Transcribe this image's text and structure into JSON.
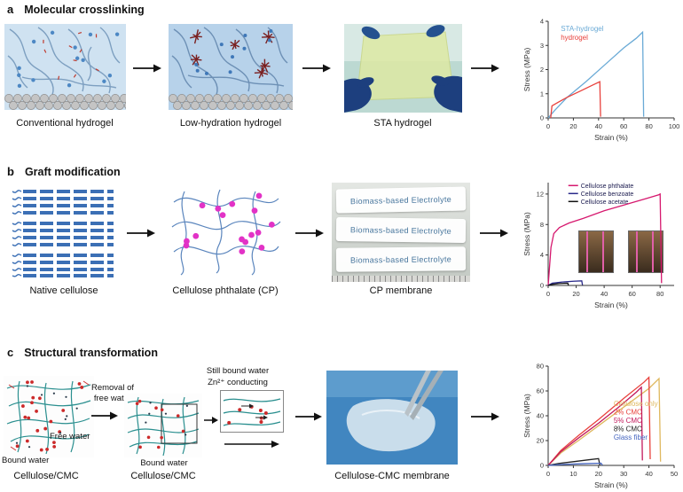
{
  "figure": {
    "panels": [
      {
        "label": "a",
        "title": "Molecular crosslinking",
        "captions": [
          "Conventional hydrogel",
          "Low-hydration hydrogel",
          "STA hydrogel"
        ]
      },
      {
        "label": "b",
        "title": "Graft modification",
        "captions": [
          "Native cellulose",
          "Cellulose phthalate (CP)",
          "CP membrane"
        ],
        "membrane_label": "Biomass-based Electrolyte"
      },
      {
        "label": "c",
        "title": "Structural transformation",
        "captions": [
          "Cellulose/CMC",
          "Cellulose/CMC",
          "Cellulose-CMC membrane"
        ],
        "annotations": {
          "removal": [
            "Removal of",
            "free water"
          ],
          "free_water": "Free water",
          "bound_water_left": "Bound water",
          "bound_water_mid": "Bound water",
          "still_bound_water": "Still bound water",
          "zn_conducting": "Zn²⁺ conducting"
        }
      }
    ]
  },
  "chart_data": [
    {
      "panel": "a",
      "type": "line",
      "xlabel": "Strain (%)",
      "ylabel": "Stress (MPa)",
      "xlim": [
        0,
        100
      ],
      "ylim": [
        0,
        4
      ],
      "xticks": [
        0,
        20,
        40,
        60,
        80,
        100
      ],
      "yticks": [
        0,
        1,
        2,
        3,
        4
      ],
      "series": [
        {
          "name": "STA-hydrogel",
          "color": "#6aaad6",
          "x": [
            0,
            5,
            15,
            30,
            45,
            60,
            70,
            75,
            75.8
          ],
          "y": [
            0,
            0.3,
            0.85,
            1.5,
            2.2,
            2.9,
            3.3,
            3.55,
            0.05
          ]
        },
        {
          "name": "hydrogel",
          "color": "#e8413c",
          "x": [
            2,
            3,
            8,
            15,
            25,
            35,
            41,
            41.6
          ],
          "y": [
            0,
            0.5,
            0.65,
            0.85,
            1.1,
            1.35,
            1.5,
            0.05
          ]
        }
      ],
      "legend": {
        "x": 0.1,
        "y": 0.1,
        "dy": 10,
        "font": 8,
        "marker": "none",
        "items": [
          {
            "label": "STA-hydrogel",
            "color": "#6aaad6"
          },
          {
            "label": "hydrogel",
            "color": "#e8413c"
          }
        ]
      }
    },
    {
      "panel": "b",
      "type": "line",
      "xlabel": "Strain (%)",
      "ylabel": "Stress (MPa)",
      "xlim": [
        0,
        90
      ],
      "ylim": [
        0,
        13.5
      ],
      "xticks": [
        0,
        20,
        40,
        60,
        80
      ],
      "yticks": [
        0,
        4,
        8,
        12
      ],
      "series": [
        {
          "name": "Cellulose phthalate",
          "color": "#d6186e",
          "x": [
            0,
            1,
            2,
            4,
            8,
            15,
            25,
            40,
            55,
            70,
            79,
            80,
            81
          ],
          "y": [
            0,
            2.5,
            5,
            6.8,
            7.6,
            8.2,
            8.8,
            9.8,
            10.6,
            11.4,
            11.9,
            12,
            0.3
          ]
        },
        {
          "name": "Cellulose benzoate",
          "color": "#2a2a8a",
          "x": [
            0,
            3,
            10,
            18,
            24,
            24.5
          ],
          "y": [
            0,
            0.3,
            0.45,
            0.55,
            0.6,
            0.05
          ]
        },
        {
          "name": "Cellulose acetate",
          "color": "#111111",
          "x": [
            0,
            3,
            8,
            14,
            14.5
          ],
          "y": [
            0,
            0.15,
            0.25,
            0.3,
            0.03
          ]
        }
      ],
      "legend": {
        "x": 0.16,
        "y": 0.05,
        "dy": 9,
        "font": 7,
        "marker": "line",
        "text_color": "#1a1a4e",
        "items": [
          {
            "label": "Cellulose phthalate",
            "color": "#d6186e"
          },
          {
            "label": "Cellulose benzoate",
            "color": "#2a2a8a"
          },
          {
            "label": "Cellulose acetate",
            "color": "#111111"
          }
        ]
      }
    },
    {
      "panel": "c",
      "type": "line",
      "xlabel": "Strain (%)",
      "ylabel": "Stress (MPa)",
      "xlim": [
        0,
        50
      ],
      "ylim": [
        0,
        80
      ],
      "xticks": [
        0,
        10,
        20,
        30,
        40,
        50
      ],
      "yticks": [
        0,
        20,
        40,
        60,
        80
      ],
      "series": [
        {
          "name": "Cellulose only",
          "color": "#dfb85f",
          "x": [
            0,
            5,
            12,
            20,
            30,
            40,
            44,
            44.6
          ],
          "y": [
            0,
            10,
            20,
            32,
            47,
            62,
            70,
            3
          ]
        },
        {
          "name": "2% CMC",
          "color": "#e8413c",
          "x": [
            0,
            5,
            12,
            20,
            30,
            38,
            40,
            40.5
          ],
          "y": [
            0,
            12,
            24,
            37,
            54,
            67,
            71,
            5
          ]
        },
        {
          "name": "5% CMC",
          "color": "#c2185b",
          "x": [
            0,
            5,
            12,
            20,
            28,
            35,
            37,
            37.4
          ],
          "y": [
            0,
            11,
            22,
            34,
            47,
            59,
            63,
            4
          ]
        },
        {
          "name": "8% CMC",
          "color": "#222222",
          "x": [
            0,
            4,
            10,
            16,
            20,
            20.5
          ],
          "y": [
            0,
            1.5,
            3,
            4.5,
            5.5,
            0.3
          ]
        },
        {
          "name": "Glass fiber",
          "color": "#4565c0",
          "x": [
            0,
            6,
            14,
            21,
            21.5
          ],
          "y": [
            0,
            0.8,
            1.4,
            1.8,
            0.2
          ]
        }
      ],
      "legend": {
        "x": 0.52,
        "y": 0.4,
        "dy": 9.5,
        "font": 8,
        "marker": "none",
        "items": [
          {
            "label": "Cellulose only",
            "color": "#dfb85f"
          },
          {
            "label": "2% CMC",
            "color": "#e8413c"
          },
          {
            "label": "5% CMC",
            "color": "#c2185b"
          },
          {
            "label": "8% CMC",
            "color": "#222222"
          },
          {
            "label": "Glass fiber",
            "color": "#4565c0"
          }
        ]
      }
    }
  ]
}
